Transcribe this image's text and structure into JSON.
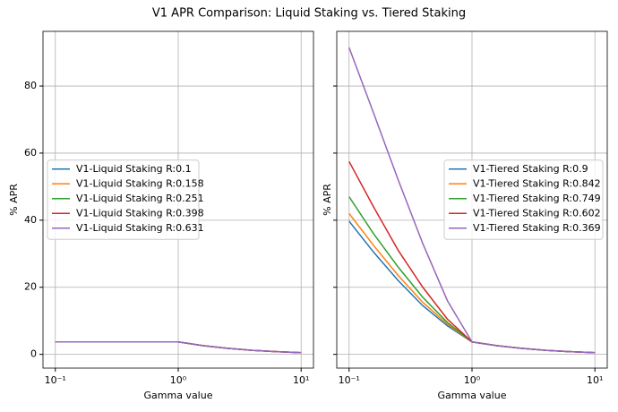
{
  "title": "V1 APR Comparison: Liquid Staking vs. Tiered Staking",
  "chart_data": [
    {
      "type": "line",
      "xlabel": "Gamma value",
      "ylabel": "% APR",
      "xscale": "log",
      "grid": true,
      "legend": "center left",
      "ytick_labels": true,
      "xlim": [
        0.0794,
        12.6
      ],
      "ylim": [
        -4.1,
        96.3
      ],
      "xticks": [
        {
          "value": 0.1,
          "label": "10⁻¹"
        },
        {
          "value": 1,
          "label": "10⁰"
        },
        {
          "value": 10,
          "label": "10¹"
        }
      ],
      "yticks": [
        0,
        20,
        40,
        60,
        80
      ],
      "x": [
        0.1,
        0.158,
        0.251,
        0.398,
        0.631,
        1,
        1.585,
        2.512,
        3.981,
        6.31,
        10
      ],
      "series": [
        {
          "name": "V1-Liquid Staking R:0.1",
          "color": "#1f77b4",
          "values": [
            3.7,
            3.7,
            3.7,
            3.7,
            3.7,
            3.7,
            2.6,
            1.8,
            1.2,
            0.8,
            0.5
          ]
        },
        {
          "name": "V1-Liquid Staking R:0.158",
          "color": "#ff7f0e",
          "values": [
            3.7,
            3.7,
            3.7,
            3.7,
            3.7,
            3.7,
            2.6,
            1.8,
            1.2,
            0.8,
            0.5
          ]
        },
        {
          "name": "V1-Liquid Staking R:0.251",
          "color": "#2ca02c",
          "values": [
            3.7,
            3.7,
            3.7,
            3.7,
            3.7,
            3.7,
            2.6,
            1.8,
            1.2,
            0.8,
            0.5
          ]
        },
        {
          "name": "V1-Liquid Staking R:0.398",
          "color": "#d62728",
          "values": [
            3.7,
            3.7,
            3.7,
            3.7,
            3.7,
            3.7,
            2.6,
            1.8,
            1.2,
            0.8,
            0.5
          ]
        },
        {
          "name": "V1-Liquid Staking R:0.631",
          "color": "#9467bd",
          "values": [
            3.7,
            3.7,
            3.7,
            3.7,
            3.7,
            3.7,
            2.6,
            1.8,
            1.2,
            0.8,
            0.5
          ]
        }
      ]
    },
    {
      "type": "line",
      "xlabel": "Gamma value",
      "ylabel": "% APR",
      "xscale": "log",
      "grid": true,
      "legend": "center right",
      "ytick_labels": false,
      "xlim": [
        0.0794,
        12.6
      ],
      "ylim": [
        -4.1,
        96.3
      ],
      "xticks": [
        {
          "value": 0.1,
          "label": "10⁻¹"
        },
        {
          "value": 1,
          "label": "10⁰"
        },
        {
          "value": 10,
          "label": "10¹"
        }
      ],
      "yticks": [
        0,
        20,
        40,
        60,
        80
      ],
      "x": [
        0.1,
        0.158,
        0.251,
        0.398,
        0.631,
        1,
        1.585,
        2.512,
        3.981,
        6.31,
        10
      ],
      "series": [
        {
          "name": "V1-Tiered Staking R:0.9",
          "color": "#1f77b4",
          "values": [
            39.7,
            30.5,
            22,
            14.5,
            8.5,
            3.7,
            2.6,
            1.8,
            1.2,
            0.8,
            0.5
          ]
        },
        {
          "name": "V1-Tiered Staking R:0.842",
          "color": "#ff7f0e",
          "values": [
            42,
            32.5,
            23.5,
            15.5,
            9,
            3.7,
            2.6,
            1.8,
            1.2,
            0.8,
            0.5
          ]
        },
        {
          "name": "V1-Tiered Staking R:0.749",
          "color": "#2ca02c",
          "values": [
            47,
            36,
            26,
            17,
            9.5,
            3.7,
            2.6,
            1.8,
            1.2,
            0.8,
            0.5
          ]
        },
        {
          "name": "V1-Tiered Staking R:0.602",
          "color": "#d62728",
          "values": [
            57.5,
            44,
            31,
            20,
            10.5,
            3.7,
            2.6,
            1.8,
            1.2,
            0.8,
            0.5
          ]
        },
        {
          "name": "V1-Tiered Staking R:0.369",
          "color": "#9467bd",
          "values": [
            91.5,
            72,
            52,
            33,
            16,
            3.7,
            2.6,
            1.8,
            1.2,
            0.8,
            0.5
          ]
        }
      ]
    }
  ]
}
